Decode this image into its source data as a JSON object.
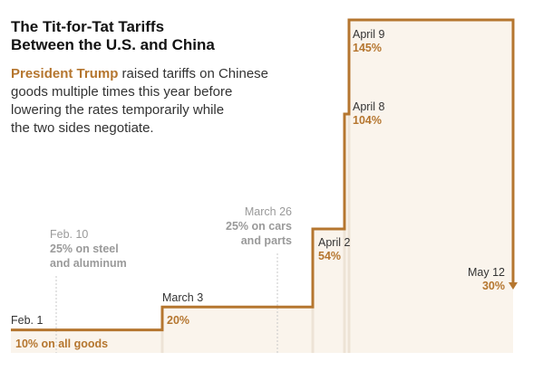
{
  "colors": {
    "accent": "#b5762f",
    "fill": "#faf4ec",
    "gray_text": "#9a9a9a",
    "dark_text": "#333333"
  },
  "header": {
    "title_line1": "The Tit-for-Tat Tariffs",
    "title_line2": "Between the U.S. and China"
  },
  "intro": {
    "highlight": "President Trump",
    "lines": [
      " raised tariffs on Chinese",
      "goods multiple times this year before",
      "lowering the rates temporarily while",
      "the two sides negotiate."
    ]
  },
  "chart_data": {
    "type": "step",
    "title": "The Tit-for-Tat Tariffs Between the U.S. and China",
    "xlabel": "",
    "ylabel": "",
    "ylim": [
      0,
      145
    ],
    "grid": false,
    "legend": "none",
    "steps": [
      {
        "date": "Feb. 1",
        "value": 10,
        "value_label": "10% on all goods"
      },
      {
        "date": "March 3",
        "value": 20,
        "value_label": "20%"
      },
      {
        "date": "April 2",
        "value": 54,
        "value_label": "54%"
      },
      {
        "date": "April 8",
        "value": 104,
        "value_label": "104%"
      },
      {
        "date": "April 9",
        "value": 145,
        "value_label": "145%"
      },
      {
        "date": "May 12",
        "value": 30,
        "value_label": "30%"
      }
    ],
    "annotations": [
      {
        "date": "Feb. 10",
        "lines": [
          "Feb. 10",
          "25% on steel",
          "and aluminum"
        ]
      },
      {
        "date": "March 26",
        "lines": [
          "March 26",
          "25% on cars",
          "and parts"
        ]
      }
    ]
  }
}
